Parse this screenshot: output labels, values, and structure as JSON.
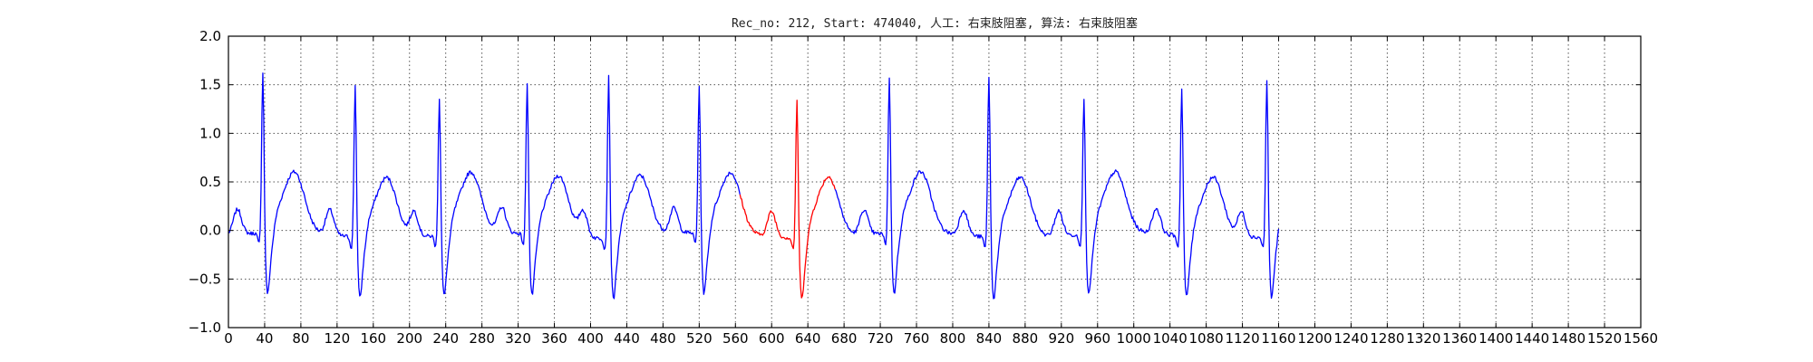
{
  "chart_data": {
    "type": "line",
    "title": "Rec_no: 212, Start: 474040, 人工: 右束肢阻塞, 算法: 右束肢阻塞",
    "xlabel": "",
    "ylabel": "",
    "xlim": [
      0,
      1560
    ],
    "ylim": [
      -1.0,
      2.0
    ],
    "grid": true,
    "x_ticks": [
      0,
      40,
      80,
      120,
      160,
      200,
      240,
      280,
      320,
      360,
      400,
      440,
      480,
      520,
      560,
      600,
      640,
      680,
      720,
      760,
      800,
      840,
      880,
      920,
      960,
      1000,
      1040,
      1080,
      1120,
      1160,
      1200,
      1240,
      1280,
      1320,
      1360,
      1400,
      1440,
      1480,
      1520,
      1560
    ],
    "x_tick_labels": [
      "0",
      "40",
      "80",
      "120",
      "160",
      "200",
      "240",
      "280",
      "320",
      "360",
      "400",
      "440",
      "480",
      "520",
      "560",
      "600",
      "640",
      "680",
      "720",
      "760",
      "800",
      "840",
      "880",
      "920",
      "960",
      "1000",
      "1040",
      "1080",
      "1120",
      "1160",
      "1200",
      "1240",
      "1280",
      "1320",
      "1360",
      "1400",
      "1440",
      "1480",
      "1520",
      "1560"
    ],
    "y_ticks": [
      -1.0,
      -0.5,
      0.0,
      0.5,
      1.0,
      1.5,
      2.0
    ],
    "y_tick_labels": [
      "−1.0",
      "−0.5",
      "0.0",
      "0.5",
      "1.0",
      "1.5",
      "2.0"
    ],
    "beats": [
      38,
      140,
      233,
      330,
      420,
      520,
      628,
      730,
      840,
      945,
      1053,
      1147
    ],
    "signal_end": 1160,
    "highlight_range": [
      565,
      670
    ],
    "series": [
      {
        "color": "#0000ff",
        "role": "normal"
      },
      {
        "color": "#ff0000",
        "role": "highlight"
      }
    ]
  }
}
